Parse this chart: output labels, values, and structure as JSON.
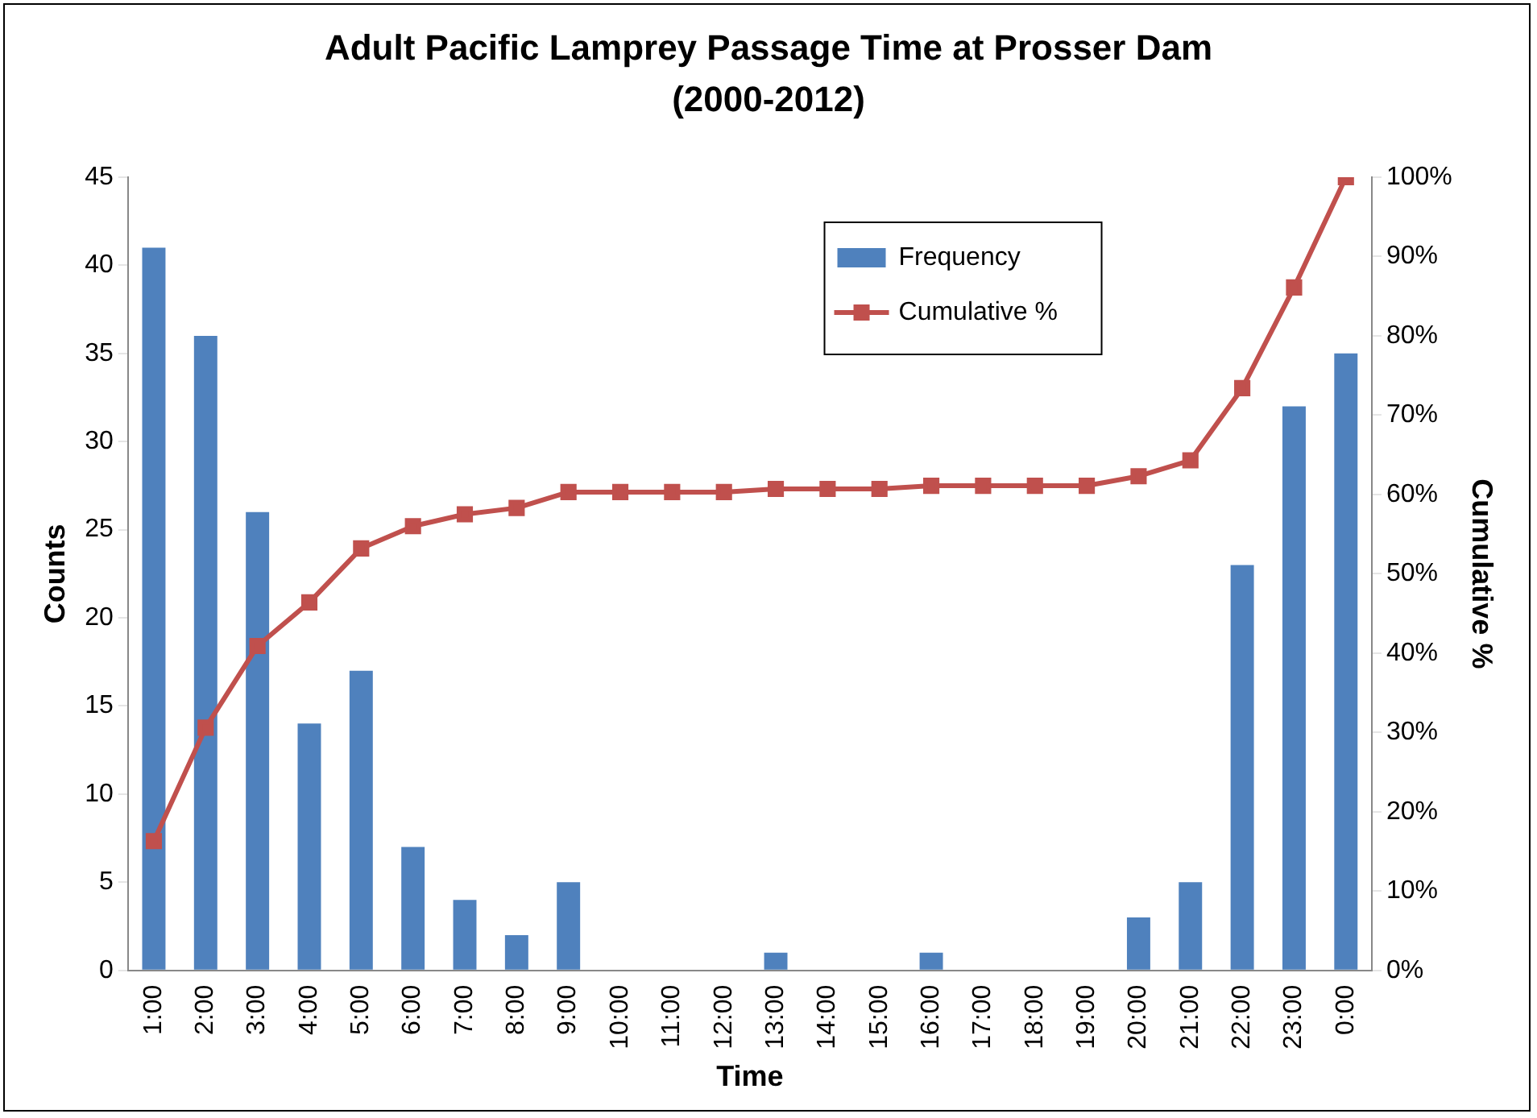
{
  "chart_data": {
    "type": "bar",
    "title": "Adult Pacific Lamprey Passage Time at Prosser Dam (2000-2012)",
    "xlabel": "Time",
    "ylabel": "Counts",
    "y2label": "Cumulative %",
    "categories": [
      "1:00",
      "2:00",
      "3:00",
      "4:00",
      "5:00",
      "6:00",
      "7:00",
      "8:00",
      "9:00",
      "10:00",
      "11:00",
      "12:00",
      "13:00",
      "14:00",
      "15:00",
      "16:00",
      "17:00",
      "18:00",
      "19:00",
      "20:00",
      "21:00",
      "22:00",
      "23:00",
      "0:00"
    ],
    "series": [
      {
        "name": "Frequency",
        "color": "#4f81bd",
        "values": [
          41,
          36,
          26,
          14,
          17,
          7,
          4,
          2,
          5,
          0,
          0,
          0,
          1,
          0,
          0,
          1,
          0,
          0,
          0,
          3,
          5,
          23,
          32,
          35
        ]
      },
      {
        "name": "Cumulative %",
        "type": "line",
        "axis": "y2",
        "color": "#c0504d",
        "marker": "square",
        "values": [
          16.3,
          30.6,
          40.9,
          46.4,
          53.2,
          56.0,
          57.5,
          58.3,
          60.3,
          60.3,
          60.3,
          60.3,
          60.7,
          60.7,
          60.7,
          61.1,
          61.1,
          61.1,
          61.1,
          62.3,
          64.3,
          73.4,
          86.1,
          100
        ]
      }
    ],
    "ylim": [
      0,
      45
    ],
    "yticks": [
      0,
      5,
      10,
      15,
      20,
      25,
      30,
      35,
      40,
      45
    ],
    "y2lim": [
      0,
      100
    ],
    "y2ticks": [
      {
        "value": 0,
        "label": "0%"
      },
      {
        "value": 10,
        "label": "10%"
      },
      {
        "value": 20,
        "label": "20%"
      },
      {
        "value": 30,
        "label": "30%"
      },
      {
        "value": 40,
        "label": "40%"
      },
      {
        "value": 50,
        "label": "50%"
      },
      {
        "value": 60,
        "label": "60%"
      },
      {
        "value": 70,
        "label": "70%"
      },
      {
        "value": 80,
        "label": "80%"
      },
      {
        "value": 90,
        "label": "90%"
      },
      {
        "value": 100,
        "label": "100%"
      }
    ],
    "grid": false,
    "legend": "top right"
  }
}
